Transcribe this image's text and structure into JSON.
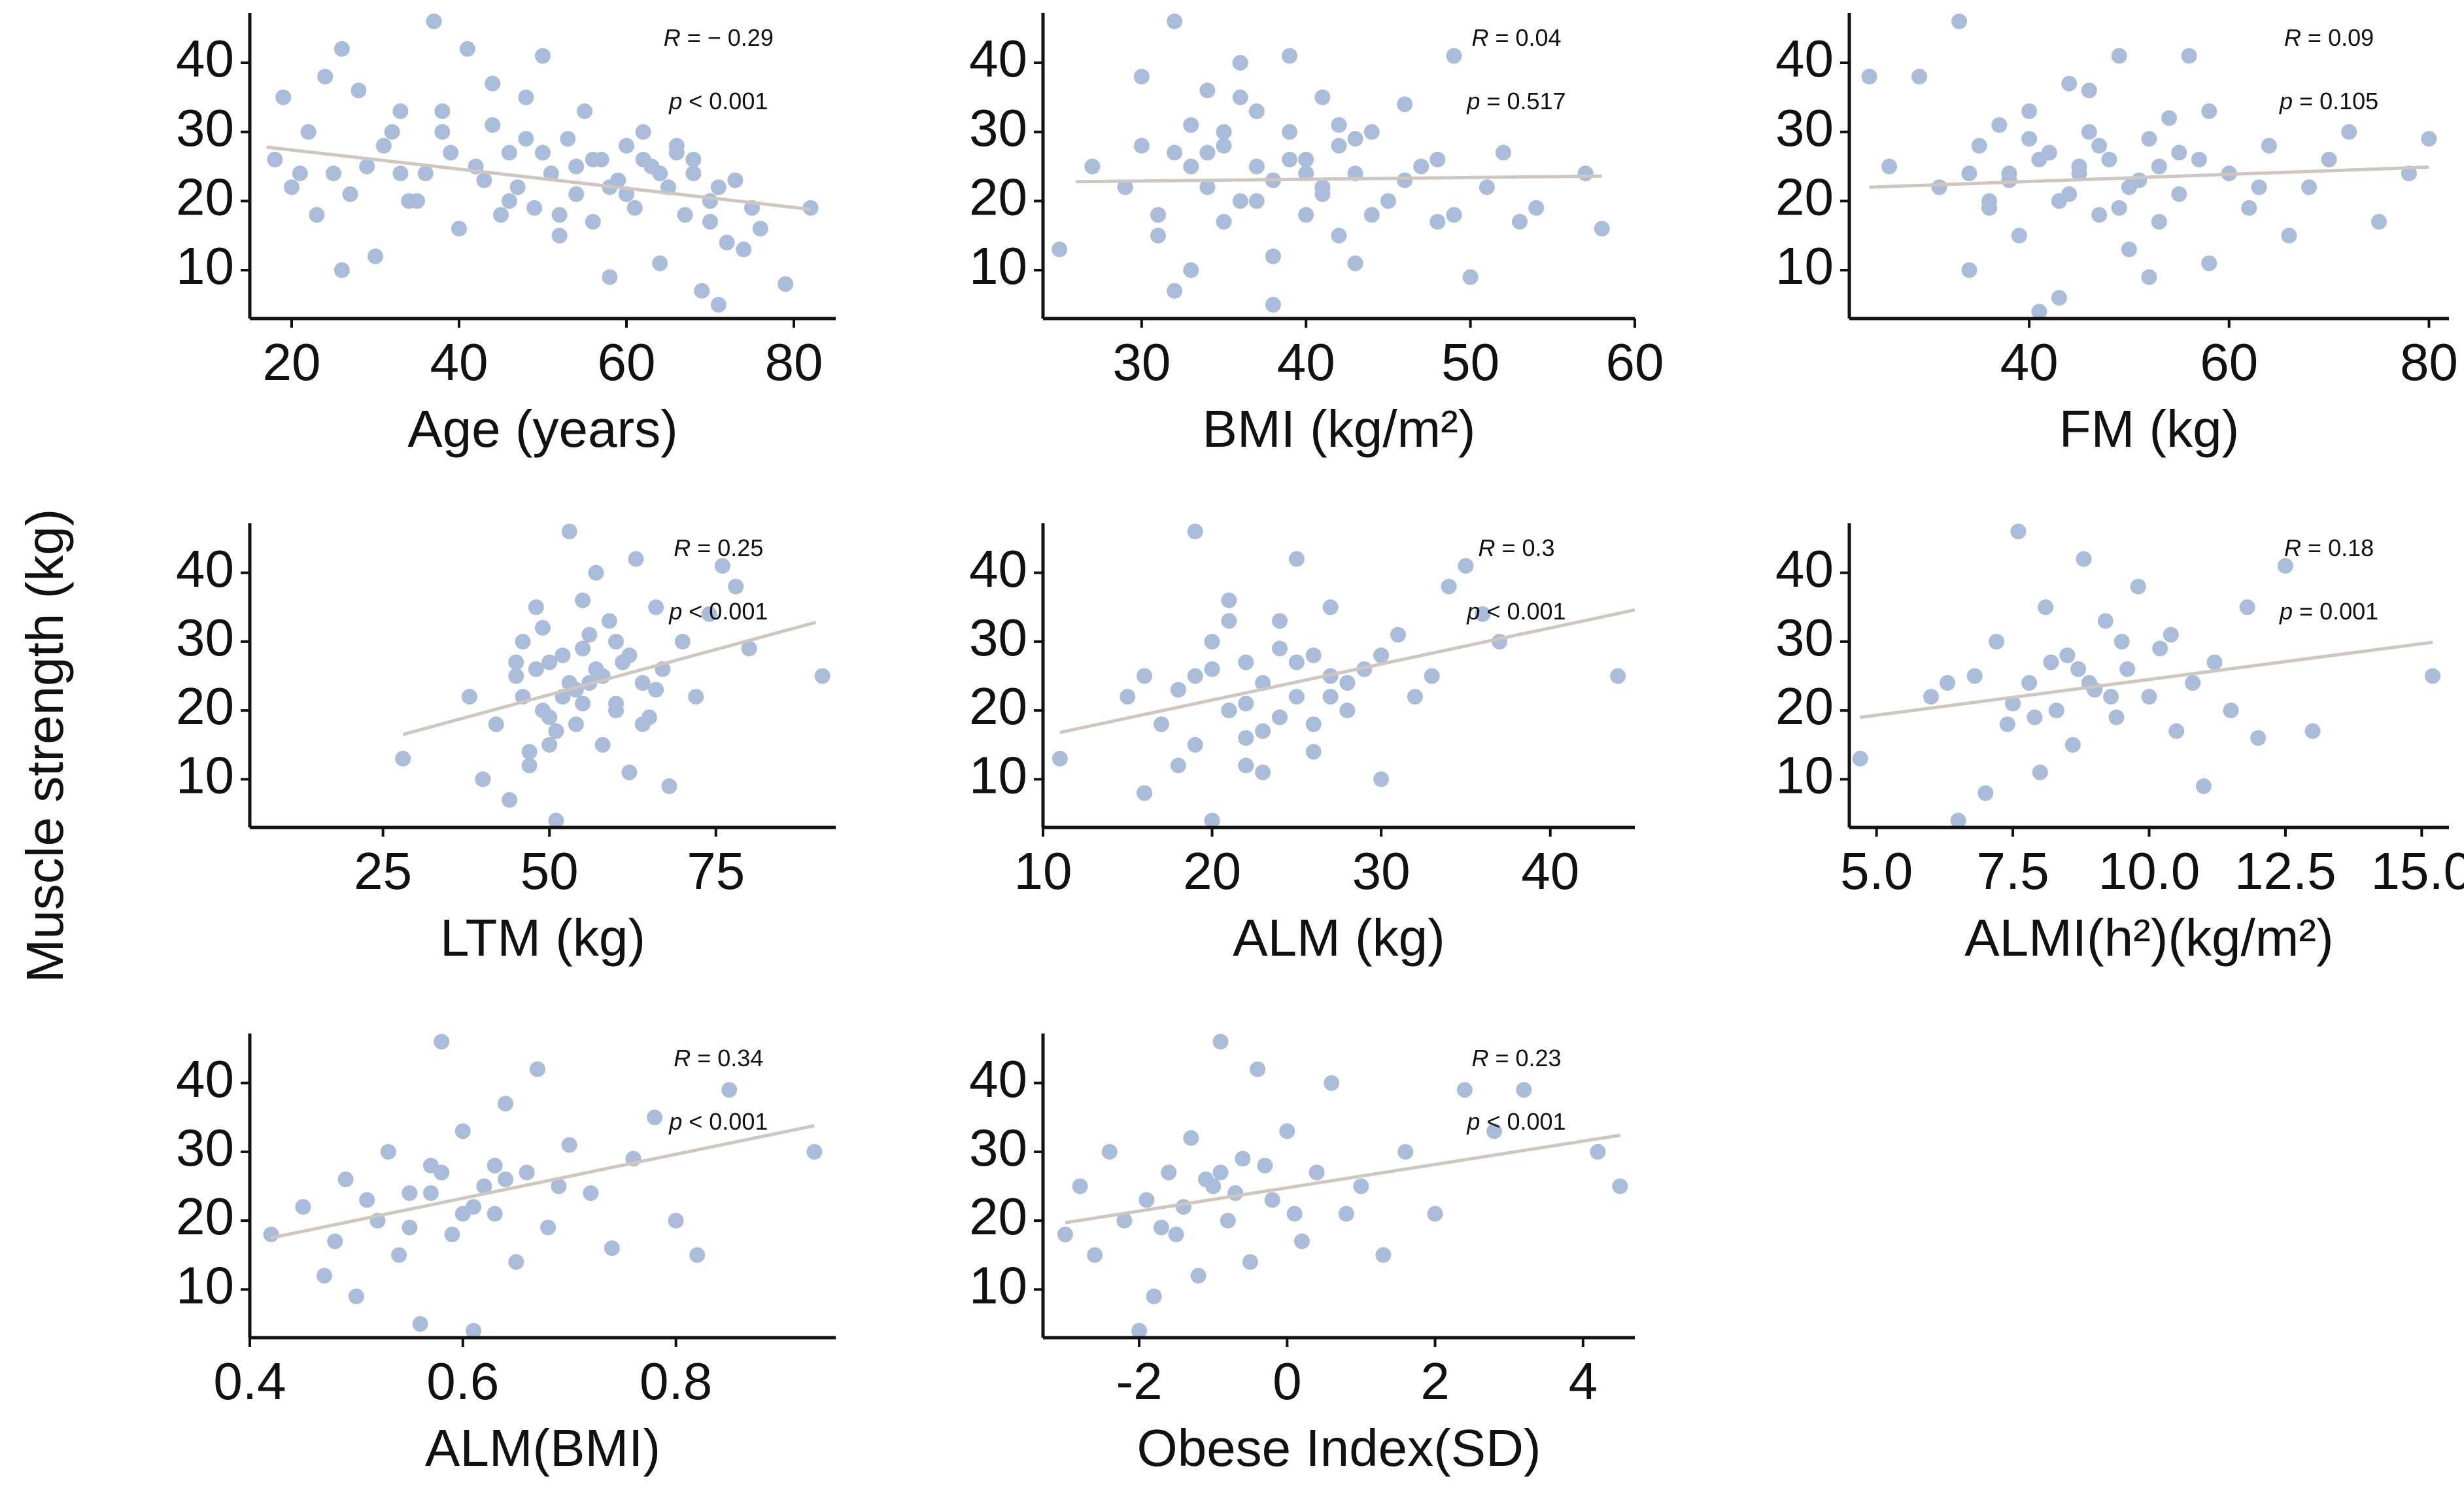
{
  "figure": {
    "shared_ylabel": "Muscle strength (kg)",
    "point_color": "#a9bcd9",
    "line_color": "#cfc6bf",
    "axis_color": "#111111"
  },
  "chart_data": [
    {
      "type": "scatter",
      "id": "age",
      "xlabel": "Age (years)",
      "ylabel": "Muscle strength (kg)",
      "xlim": [
        15,
        85
      ],
      "ylim": [
        3,
        47
      ],
      "xticks": [
        20,
        40,
        60,
        80
      ],
      "xtick_labels": [
        "20",
        "40",
        "60",
        "80"
      ],
      "yticks": [
        10,
        20,
        30,
        40
      ],
      "ytick_labels": [
        "10",
        "20",
        "30",
        "40"
      ],
      "r_label": "R",
      "r_text": " = − 0.29",
      "p_label": "p",
      "p_text": " < 0.001",
      "fit": {
        "x": [
          17,
          82
        ],
        "y": [
          27.8,
          18.8
        ]
      },
      "x": [
        18,
        20,
        22,
        23,
        25,
        26,
        28,
        30,
        31,
        33,
        35,
        36,
        37,
        38,
        40,
        41,
        42,
        44,
        45,
        46,
        47,
        48,
        49,
        50,
        51,
        52,
        53,
        54,
        55,
        56,
        57,
        58,
        59,
        60,
        61,
        62,
        63,
        64,
        65,
        66,
        67,
        68,
        69,
        70,
        71,
        72,
        73,
        74,
        75,
        76,
        79,
        82,
        19,
        21,
        24,
        27,
        29,
        32,
        34,
        39,
        43,
        48,
        52,
        56,
        60,
        64,
        68,
        71,
        38,
        44,
        50,
        58,
        62,
        66,
        70,
        26,
        33,
        46,
        54
      ],
      "y": [
        26,
        22,
        30,
        18,
        24,
        10,
        36,
        12,
        28,
        33,
        20,
        24,
        46,
        30,
        16,
        42,
        25,
        31,
        18,
        27,
        22,
        35,
        19,
        41,
        24,
        15,
        29,
        21,
        33,
        17,
        26,
        9,
        23,
        28,
        19,
        30,
        25,
        11,
        22,
        27,
        18,
        24,
        7,
        20,
        5,
        14,
        23,
        13,
        19,
        16,
        8,
        19,
        35,
        24,
        38,
        21,
        25,
        30,
        20,
        27,
        23,
        29,
        18,
        26,
        21,
        24,
        26,
        22,
        33,
        37,
        27,
        22,
        26,
        28,
        17,
        42,
        24,
        20,
        25
      ]
    },
    {
      "type": "scatter",
      "id": "bmi",
      "xlabel": "BMI (kg/m²)",
      "ylabel": "Muscle strength (kg)",
      "xlim": [
        24,
        60
      ],
      "ylim": [
        3,
        47
      ],
      "xticks": [
        30,
        40,
        50,
        60
      ],
      "xtick_labels": [
        "30",
        "40",
        "50",
        "60"
      ],
      "yticks": [
        10,
        20,
        30,
        40
      ],
      "ytick_labels": [
        "10",
        "20",
        "30",
        "40"
      ],
      "r_label": "R",
      "r_text": " = 0.04",
      "p_label": "p",
      "p_text": " = 0.517",
      "fit": {
        "x": [
          26,
          58
        ],
        "y": [
          22.8,
          23.6
        ]
      },
      "x": [
        25,
        27,
        29,
        30,
        31,
        32,
        32,
        33,
        33,
        34,
        34,
        35,
        35,
        36,
        36,
        37,
        37,
        38,
        38,
        39,
        39,
        40,
        40,
        41,
        41,
        42,
        42,
        43,
        43,
        44,
        45,
        46,
        47,
        48,
        49,
        50,
        51,
        52,
        54,
        57,
        58,
        31,
        33,
        35,
        37,
        39,
        41,
        43,
        36,
        38,
        40,
        44,
        46,
        34,
        42,
        48,
        53,
        30,
        32,
        49
      ],
      "y": [
        13,
        25,
        22,
        38,
        18,
        46,
        27,
        10,
        31,
        22,
        36,
        17,
        28,
        40,
        20,
        25,
        33,
        5,
        23,
        30,
        41,
        18,
        26,
        21,
        35,
        15,
        28,
        24,
        11,
        30,
        20,
        34,
        25,
        17,
        41,
        9,
        22,
        27,
        19,
        24,
        16,
        15,
        25,
        30,
        20,
        26,
        22,
        29,
        35,
        12,
        24,
        18,
        23,
        27,
        31,
        26,
        17,
        28,
        7,
        18
      ]
    },
    {
      "type": "scatter",
      "id": "fm",
      "xlabel": "FM (kg)",
      "ylabel": "Muscle strength (kg)",
      "xlim": [
        22,
        82
      ],
      "ylim": [
        3,
        47
      ],
      "xticks": [
        40,
        60,
        80
      ],
      "xtick_labels": [
        "40",
        "60",
        "80"
      ],
      "yticks": [
        10,
        20,
        30,
        40
      ],
      "ytick_labels": [
        "10",
        "20",
        "30",
        "40"
      ],
      "r_label": "R",
      "r_text": " = 0.09",
      "p_label": "p",
      "p_text": " = 0.105",
      "fit": {
        "x": [
          24,
          80
        ],
        "y": [
          22.0,
          24.9
        ]
      },
      "x": [
        24,
        26,
        29,
        31,
        33,
        34,
        35,
        36,
        37,
        38,
        39,
        40,
        41,
        42,
        43,
        44,
        45,
        46,
        47,
        48,
        49,
        50,
        51,
        52,
        53,
        54,
        55,
        56,
        57,
        58,
        60,
        62,
        64,
        66,
        68,
        70,
        72,
        75,
        78,
        80,
        38,
        41,
        44,
        47,
        50,
        53,
        36,
        40,
        45,
        49,
        55,
        43,
        46,
        58,
        63,
        34,
        52
      ],
      "y": [
        38,
        25,
        38,
        22,
        46,
        10,
        28,
        19,
        31,
        24,
        15,
        33,
        4,
        27,
        20,
        37,
        24,
        30,
        18,
        26,
        41,
        13,
        23,
        29,
        17,
        32,
        21,
        41,
        26,
        11,
        24,
        19,
        28,
        15,
        22,
        26,
        30,
        17,
        24,
        29,
        23,
        26,
        21,
        28,
        22,
        25,
        20,
        29,
        25,
        19,
        27,
        6,
        36,
        33,
        22,
        24,
        9
      ]
    },
    {
      "type": "scatter",
      "id": "ltm",
      "xlabel": "LTM (kg)",
      "ylabel": "Muscle strength (kg)",
      "xlim": [
        5,
        93
      ],
      "ylim": [
        3,
        47
      ],
      "xticks": [
        25,
        50,
        75
      ],
      "xtick_labels": [
        "25",
        "50",
        "75"
      ],
      "yticks": [
        10,
        20,
        30,
        40
      ],
      "ytick_labels": [
        "10",
        "20",
        "30",
        "40"
      ],
      "r_label": "R",
      "r_text": " = 0.25",
      "p_label": "p",
      "p_text": " < 0.001",
      "fit": {
        "x": [
          28,
          90
        ],
        "y": [
          16.5,
          32.8
        ]
      },
      "x": [
        28,
        38,
        40,
        42,
        44,
        45,
        46,
        47,
        48,
        49,
        50,
        51,
        52,
        53,
        54,
        55,
        56,
        57,
        58,
        59,
        60,
        61,
        62,
        63,
        64,
        65,
        66,
        67,
        68,
        70,
        72,
        74,
        76,
        78,
        80,
        91,
        46,
        48,
        50,
        52,
        54,
        56,
        58,
        60,
        51,
        53,
        55,
        57,
        49,
        47,
        62,
        64,
        66,
        45,
        50,
        55,
        60
      ],
      "y": [
        13,
        22,
        10,
        18,
        7,
        25,
        30,
        14,
        35,
        20,
        27,
        4,
        22,
        46,
        18,
        29,
        24,
        40,
        15,
        33,
        21,
        27,
        11,
        42,
        24,
        19,
        35,
        26,
        9,
        30,
        22,
        34,
        41,
        38,
        29,
        25,
        22,
        26,
        19,
        28,
        23,
        31,
        25,
        20,
        17,
        24,
        21,
        26,
        32,
        12,
        28,
        18,
        23,
        27,
        15,
        36,
        30
      ]
    },
    {
      "type": "scatter",
      "id": "alm",
      "xlabel": "ALM (kg)",
      "ylabel": "Muscle strength (kg)",
      "xlim": [
        10,
        45
      ],
      "ylim": [
        3,
        47
      ],
      "xticks": [
        10,
        20,
        30,
        40
      ],
      "xtick_labels": [
        "10",
        "20",
        "30",
        "40"
      ],
      "yticks": [
        10,
        20,
        30,
        40
      ],
      "ytick_labels": [
        "10",
        "20",
        "30",
        "40"
      ],
      "r_label": "R",
      "r_text": " = 0.3",
      "p_label": "p",
      "p_text": " < 0.001",
      "fit": {
        "x": [
          11,
          45
        ],
        "y": [
          16.8,
          34.6
        ]
      },
      "x": [
        11,
        15,
        16,
        17,
        18,
        19,
        19,
        20,
        20,
        21,
        21,
        22,
        22,
        23,
        23,
        24,
        24,
        25,
        25,
        26,
        26,
        27,
        27,
        28,
        29,
        30,
        31,
        32,
        33,
        34,
        35,
        36,
        37,
        44,
        18,
        20,
        22,
        24,
        26,
        28,
        21,
        23,
        25,
        19,
        27,
        16,
        30,
        22,
        24
      ],
      "y": [
        13,
        22,
        8,
        18,
        12,
        46,
        25,
        4,
        30,
        20,
        36,
        16,
        27,
        11,
        24,
        33,
        19,
        42,
        22,
        28,
        14,
        25,
        35,
        20,
        26,
        10,
        31,
        22,
        25,
        38,
        41,
        34,
        30,
        25,
        23,
        26,
        21,
        29,
        18,
        24,
        33,
        17,
        27,
        15,
        22,
        25,
        28,
        12,
        19
      ]
    },
    {
      "type": "scatter",
      "id": "almi",
      "xlabel": "ALMI(h²)(kg/m²)",
      "ylabel": "Muscle strength (kg)",
      "xlim": [
        4.5,
        15.5
      ],
      "ylim": [
        3,
        47
      ],
      "xticks": [
        5.0,
        7.5,
        10.0,
        12.5,
        15.0
      ],
      "xtick_labels": [
        "5.0",
        "7.5",
        "10.0",
        "12.5",
        "15.0"
      ],
      "yticks": [
        10,
        20,
        30,
        40
      ],
      "ytick_labels": [
        "10",
        "20",
        "30",
        "40"
      ],
      "r_label": "R",
      "r_text": " = 0.18",
      "p_label": "p",
      "p_text": " = 0.001",
      "fit": {
        "x": [
          4.7,
          15.2
        ],
        "y": [
          19.0,
          29.9
        ]
      },
      "x": [
        4.7,
        6.0,
        6.5,
        6.8,
        7.0,
        7.2,
        7.4,
        7.6,
        7.8,
        8.0,
        8.1,
        8.3,
        8.5,
        8.6,
        8.8,
        9.0,
        9.2,
        9.4,
        9.6,
        9.8,
        10.0,
        10.2,
        10.5,
        10.8,
        11.0,
        11.2,
        11.5,
        12.0,
        12.5,
        13.0,
        15.2,
        7.5,
        8.2,
        8.9,
        9.5,
        7.9,
        8.7,
        9.3,
        10.4,
        6.3,
        11.8
      ],
      "y": [
        13,
        22,
        4,
        25,
        8,
        30,
        18,
        46,
        24,
        11,
        35,
        20,
        28,
        15,
        42,
        23,
        33,
        19,
        26,
        38,
        22,
        29,
        17,
        24,
        9,
        27,
        20,
        16,
        41,
        17,
        25,
        21,
        27,
        24,
        30,
        19,
        26,
        22,
        31,
        24,
        35
      ]
    },
    {
      "type": "scatter",
      "id": "alm-bmi",
      "xlabel": "ALM(BMI)",
      "ylabel": "Muscle strength (kg)",
      "xlim": [
        0.4,
        0.95
      ],
      "ylim": [
        3,
        47
      ],
      "xticks": [
        0.4,
        0.6,
        0.8
      ],
      "xtick_labels": [
        "0.4",
        "0.6",
        "0.8"
      ],
      "yticks": [
        10,
        20,
        30,
        40
      ],
      "ytick_labels": [
        "10",
        "20",
        "30",
        "40"
      ],
      "r_label": "R",
      "r_text": " = 0.34",
      "p_label": "p",
      "p_text": " < 0.001",
      "fit": {
        "x": [
          0.42,
          0.93
        ],
        "y": [
          17.5,
          33.8
        ]
      },
      "x": [
        0.42,
        0.45,
        0.47,
        0.49,
        0.5,
        0.52,
        0.53,
        0.54,
        0.55,
        0.56,
        0.57,
        0.58,
        0.59,
        0.6,
        0.61,
        0.62,
        0.63,
        0.64,
        0.65,
        0.66,
        0.67,
        0.68,
        0.7,
        0.72,
        0.74,
        0.76,
        0.78,
        0.8,
        0.82,
        0.85,
        0.93,
        0.51,
        0.55,
        0.58,
        0.61,
        0.64,
        0.57,
        0.6,
        0.63,
        0.69,
        0.48
      ],
      "y": [
        18,
        22,
        12,
        26,
        9,
        20,
        30,
        15,
        24,
        5,
        28,
        46,
        18,
        33,
        4,
        25,
        21,
        37,
        14,
        27,
        42,
        19,
        31,
        24,
        16,
        29,
        35,
        20,
        15,
        39,
        30,
        23,
        19,
        27,
        22,
        26,
        24,
        21,
        28,
        25,
        17
      ]
    },
    {
      "type": "scatter",
      "id": "obese-index",
      "xlabel": "Obese Index(SD)",
      "ylabel": "Muscle strength (kg)",
      "xlim": [
        -3.3,
        4.7
      ],
      "ylim": [
        3,
        47
      ],
      "xticks": [
        -2,
        0,
        2,
        4
      ],
      "xtick_labels": [
        "-2",
        "0",
        "2",
        "4"
      ],
      "yticks": [
        10,
        20,
        30,
        40
      ],
      "ytick_labels": [
        "10",
        "20",
        "30",
        "40"
      ],
      "r_label": "R",
      "r_text": " = 0.23",
      "p_label": "p",
      "p_text": " < 0.001",
      "fit": {
        "x": [
          -3.0,
          4.5
        ],
        "y": [
          19.7,
          32.4
        ]
      },
      "x": [
        -3.0,
        -2.8,
        -2.6,
        -2.4,
        -2.2,
        -2.0,
        -1.9,
        -1.8,
        -1.6,
        -1.5,
        -1.3,
        -1.2,
        -1.0,
        -0.9,
        -0.8,
        -0.6,
        -0.5,
        -0.4,
        -0.2,
        0.0,
        0.2,
        0.4,
        0.6,
        0.8,
        1.0,
        1.3,
        1.6,
        2.0,
        2.4,
        2.8,
        3.2,
        4.2,
        4.5,
        -1.4,
        -1.1,
        -0.7,
        -0.3,
        0.1,
        -1.7,
        -0.9
      ],
      "y": [
        18,
        25,
        15,
        30,
        20,
        4,
        23,
        9,
        27,
        18,
        32,
        12,
        25,
        46,
        20,
        29,
        14,
        42,
        23,
        33,
        17,
        27,
        40,
        21,
        25,
        15,
        30,
        21,
        39,
        33,
        39,
        30,
        25,
        22,
        26,
        24,
        28,
        21,
        19,
        27
      ]
    }
  ]
}
